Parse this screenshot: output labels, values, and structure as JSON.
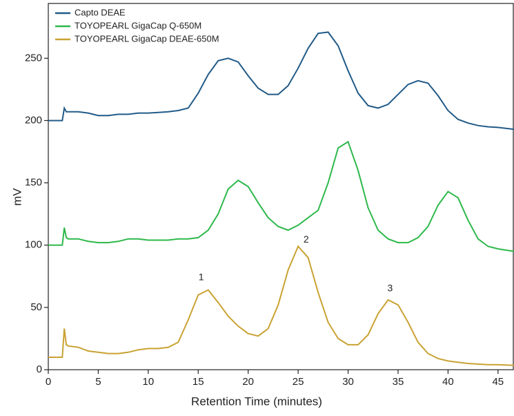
{
  "chart_data": {
    "type": "line",
    "x_label": "Retention Time (minutes)",
    "y_label": "mV",
    "x": [
      0,
      1.4,
      1.6,
      1.8,
      2,
      3,
      4,
      5,
      6,
      7,
      8,
      9,
      10,
      11,
      12,
      13,
      14,
      15,
      16,
      17,
      18,
      19,
      20,
      21,
      22,
      23,
      24,
      25,
      26,
      27,
      28,
      29,
      30,
      31,
      32,
      33,
      34,
      35,
      36,
      37,
      38,
      39,
      40,
      41,
      42,
      43,
      44,
      45,
      46.6
    ],
    "series": [
      {
        "name": "Capto DEAE",
        "color": "#215a87",
        "values": [
          200,
          200,
          210,
          207,
          207,
          207,
          206,
          204,
          204,
          205,
          205,
          206,
          206,
          206.5,
          207,
          208,
          210,
          222,
          237,
          248,
          250,
          247,
          236,
          226,
          221,
          221,
          228,
          242,
          258,
          270,
          271,
          260,
          240,
          222,
          212,
          210,
          213,
          221,
          229,
          232,
          230,
          220,
          208,
          201,
          198,
          196,
          195,
          194.5,
          193
        ]
      },
      {
        "name": "TOYOPEARL GigaCap Q-650M",
        "color": "#2db84a",
        "values": [
          100,
          100,
          114,
          106,
          105,
          105,
          103,
          102,
          102,
          103,
          105,
          105,
          104,
          104,
          104,
          105,
          105,
          106,
          112,
          125,
          145,
          152,
          147,
          134,
          122,
          115,
          112,
          116,
          122,
          128,
          150,
          178,
          183,
          160,
          130,
          112,
          105,
          102,
          102,
          106,
          115,
          132,
          143,
          138,
          120,
          105,
          99,
          97,
          95
        ]
      },
      {
        "name": "TOYOPEARL GigaCap DEAE-650M",
        "color": "#c9a232",
        "values": [
          10,
          10,
          33,
          20,
          19,
          18,
          15,
          14,
          13,
          13,
          14,
          16,
          17,
          17,
          18,
          22,
          40,
          60,
          64,
          54,
          43,
          35,
          29,
          27,
          33,
          52,
          80,
          99,
          90,
          62,
          38,
          25,
          20,
          20,
          28,
          45,
          56,
          52,
          38,
          22,
          13,
          9,
          7,
          6,
          5,
          4.5,
          4,
          4,
          3.5
        ]
      }
    ],
    "annotations": [
      {
        "text": "1",
        "x": 15.3,
        "y": 74
      },
      {
        "text": "2",
        "x": 25.8,
        "y": 104
      },
      {
        "text": "3",
        "x": 34.2,
        "y": 65
      }
    ],
    "xlim": [
      0,
      46.6
    ],
    "ylim": [
      0,
      294
    ],
    "xticks": [
      0,
      5,
      10,
      15,
      20,
      25,
      30,
      35,
      40,
      45
    ],
    "yticks": [
      0,
      50,
      100,
      150,
      200,
      250
    ],
    "legend": "upper-left",
    "grid": false
  }
}
